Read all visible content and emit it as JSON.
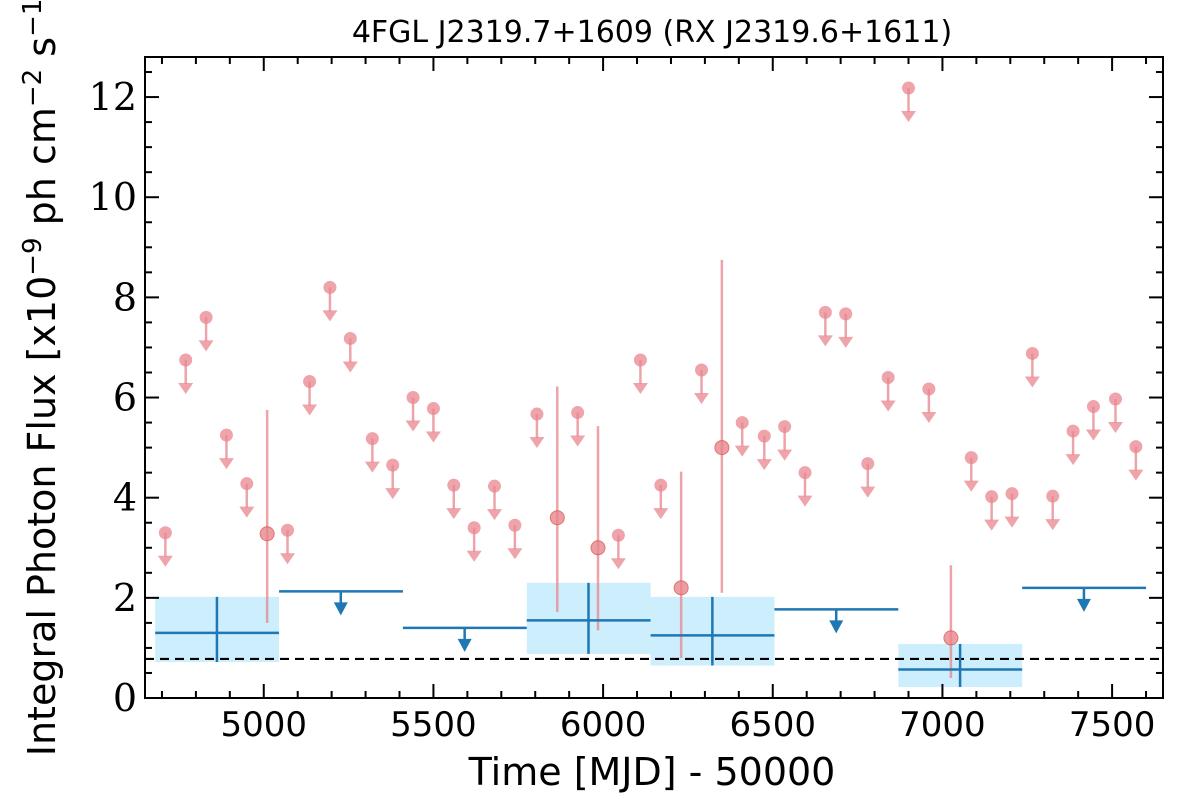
{
  "chart_data": {
    "type": "scatter",
    "title": "4FGL J2319.7+1609 (RX J2319.6+1611)",
    "xlabel": "Time [MJD] - 50000",
    "ylabel": "Integral Photon Flux [x10",
    "ylabel_exp": "−9",
    "ylabel_unit": " ph cm",
    "ylabel_unit_exp": "−2",
    "ylabel_tail": " s",
    "ylabel_tail_exp": "−1",
    "ylabel_close": "]",
    "xlim": [
      4650,
      7650
    ],
    "ylim": [
      0,
      12.8
    ],
    "x_ticks": [
      5000,
      5500,
      6000,
      6500,
      7000,
      7500
    ],
    "x_tick_labels": [
      "5000",
      "5500",
      "6000",
      "6500",
      "7000",
      "7500"
    ],
    "y_ticks": [
      0,
      2,
      4,
      6,
      8,
      10,
      12
    ],
    "y_tick_labels": [
      "0",
      "2",
      "4",
      "6",
      "8",
      "10",
      "12"
    ],
    "grid": false,
    "baseline": 0.78,
    "colors": {
      "short_bins": "#e8868d",
      "long_bins": "#1f77b4",
      "long_bins_fill": "#cdeefc",
      "baseline": "#000000"
    },
    "series": [
      {
        "points": [
          {
            "x": 4710,
            "y": 3.3,
            "ul": true
          },
          {
            "x": 4770,
            "y": 6.75,
            "ul": true
          },
          {
            "x": 4830,
            "y": 7.6,
            "ul": true
          },
          {
            "x": 4890,
            "y": 5.25,
            "ul": true
          },
          {
            "x": 4950,
            "y": 4.28,
            "ul": true
          },
          {
            "x": 5010,
            "y": 3.28,
            "ul": false,
            "ylo": 1.5,
            "yhi": 5.75
          },
          {
            "x": 5070,
            "y": 3.35,
            "ul": true
          },
          {
            "x": 5135,
            "y": 6.32,
            "ul": true
          },
          {
            "x": 5195,
            "y": 8.2,
            "ul": true
          },
          {
            "x": 5255,
            "y": 7.18,
            "ul": true
          },
          {
            "x": 5320,
            "y": 5.18,
            "ul": true
          },
          {
            "x": 5380,
            "y": 4.65,
            "ul": true
          },
          {
            "x": 5440,
            "y": 6.0,
            "ul": true
          },
          {
            "x": 5500,
            "y": 5.78,
            "ul": true
          },
          {
            "x": 5560,
            "y": 4.25,
            "ul": true
          },
          {
            "x": 5620,
            "y": 3.4,
            "ul": true
          },
          {
            "x": 5680,
            "y": 4.23,
            "ul": true
          },
          {
            "x": 5740,
            "y": 3.45,
            "ul": true
          },
          {
            "x": 5805,
            "y": 5.67,
            "ul": true
          },
          {
            "x": 5865,
            "y": 3.6,
            "ul": false,
            "ylo": 1.72,
            "yhi": 6.22
          },
          {
            "x": 5925,
            "y": 5.7,
            "ul": true
          },
          {
            "x": 5985,
            "y": 3.0,
            "ul": false,
            "ylo": 1.35,
            "yhi": 5.43
          },
          {
            "x": 6045,
            "y": 3.25,
            "ul": true
          },
          {
            "x": 6110,
            "y": 6.75,
            "ul": true
          },
          {
            "x": 6170,
            "y": 4.25,
            "ul": true
          },
          {
            "x": 6230,
            "y": 2.2,
            "ul": false,
            "ylo": 0.8,
            "yhi": 4.52
          },
          {
            "x": 6290,
            "y": 6.55,
            "ul": true
          },
          {
            "x": 6350,
            "y": 5.0,
            "ul": false,
            "ylo": 2.1,
            "yhi": 8.75
          },
          {
            "x": 6410,
            "y": 5.5,
            "ul": true
          },
          {
            "x": 6475,
            "y": 5.23,
            "ul": true
          },
          {
            "x": 6535,
            "y": 5.42,
            "ul": true
          },
          {
            "x": 6595,
            "y": 4.5,
            "ul": true
          },
          {
            "x": 6655,
            "y": 7.7,
            "ul": true
          },
          {
            "x": 6715,
            "y": 7.67,
            "ul": true
          },
          {
            "x": 6780,
            "y": 4.68,
            "ul": true
          },
          {
            "x": 6840,
            "y": 6.4,
            "ul": true
          },
          {
            "x": 6900,
            "y": 12.18,
            "ul": true
          },
          {
            "x": 6960,
            "y": 6.17,
            "ul": true
          },
          {
            "x": 7025,
            "y": 1.2,
            "ul": false,
            "ylo": 0.4,
            "yhi": 2.65
          },
          {
            "x": 7085,
            "y": 4.8,
            "ul": true
          },
          {
            "x": 7145,
            "y": 4.02,
            "ul": true
          },
          {
            "x": 7205,
            "y": 4.08,
            "ul": true
          },
          {
            "x": 7265,
            "y": 6.88,
            "ul": true
          },
          {
            "x": 7325,
            "y": 4.03,
            "ul": true
          },
          {
            "x": 7385,
            "y": 5.33,
            "ul": true
          },
          {
            "x": 7445,
            "y": 5.82,
            "ul": true
          },
          {
            "x": 7510,
            "y": 5.97,
            "ul": true
          },
          {
            "x": 7570,
            "y": 5.02,
            "ul": true
          }
        ]
      },
      {
        "bins": [
          {
            "x0": 4680,
            "x1": 5045,
            "xc": 4862,
            "y": 1.3,
            "ul": false,
            "ylo": 0.72,
            "yhi": 2.02
          },
          {
            "x0": 5045,
            "x1": 5410,
            "xc": 5227,
            "y": 2.13,
            "ul": true
          },
          {
            "x0": 5410,
            "x1": 5775,
            "xc": 5592,
            "y": 1.4,
            "ul": true
          },
          {
            "x0": 5775,
            "x1": 6140,
            "xc": 5957,
            "y": 1.55,
            "ul": false,
            "ylo": 0.88,
            "yhi": 2.3
          },
          {
            "x0": 6140,
            "x1": 6505,
            "xc": 6322,
            "y": 1.25,
            "ul": false,
            "ylo": 0.65,
            "yhi": 2.02
          },
          {
            "x0": 6505,
            "x1": 6870,
            "xc": 6687,
            "y": 1.77,
            "ul": true
          },
          {
            "x0": 6870,
            "x1": 7235,
            "xc": 7052,
            "y": 0.57,
            "ul": false,
            "ylo": 0.22,
            "yhi": 1.08
          },
          {
            "x0": 7235,
            "x1": 7600,
            "xc": 7417,
            "y": 2.2,
            "ul": true
          }
        ]
      }
    ]
  }
}
